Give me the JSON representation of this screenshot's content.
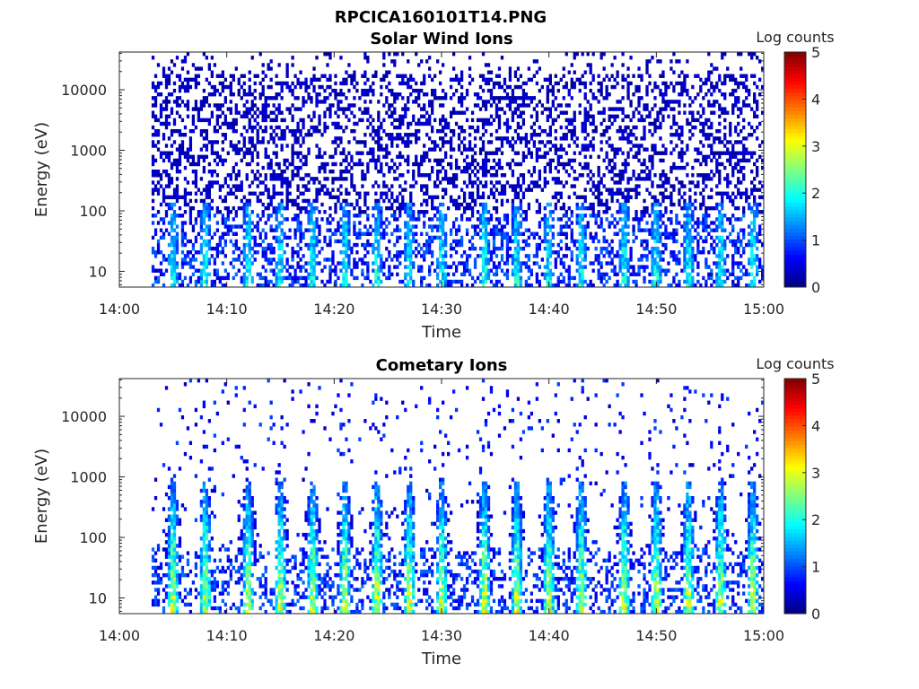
{
  "figure_title": "RPCICA160101T14.PNG",
  "chart_data": [
    {
      "type": "heatmap",
      "title": "Solar Wind Ions",
      "xlabel": "Time",
      "ylabel": "Energy (eV)",
      "x_range": [
        "14:00",
        "15:00"
      ],
      "x_ticks": [
        "14:00",
        "14:10",
        "14:20",
        "14:30",
        "14:40",
        "14:50",
        "15:00"
      ],
      "y_scale": "log",
      "y_range": [
        5.5,
        42000
      ],
      "y_ticks": [
        10,
        100,
        1000,
        10000
      ],
      "y_tick_labels": [
        "10",
        "100",
        "1000",
        "10000"
      ],
      "data_start": "14:03",
      "data_end": "15:00",
      "burst_times": [
        "14:05",
        "14:08",
        "14:12",
        "14:15",
        "14:18",
        "14:21",
        "14:24",
        "14:27",
        "14:30",
        "14:34",
        "14:37",
        "14:40",
        "14:43",
        "14:47",
        "14:50",
        "14:53",
        "14:56",
        "14:59"
      ],
      "peak_log_counts": 2.5,
      "colorbar": {
        "label": "Log counts",
        "range": [
          0,
          5
        ],
        "ticks": [
          "0",
          "1",
          "2",
          "3",
          "4",
          "5"
        ],
        "colormap": "jet"
      }
    },
    {
      "type": "heatmap",
      "title": "Cometary Ions",
      "xlabel": "Time",
      "ylabel": "Energy (eV)",
      "x_range": [
        "14:00",
        "15:00"
      ],
      "x_ticks": [
        "14:00",
        "14:10",
        "14:20",
        "14:30",
        "14:40",
        "14:50",
        "15:00"
      ],
      "y_scale": "log",
      "y_range": [
        5.5,
        42000
      ],
      "y_ticks": [
        10,
        100,
        1000,
        10000
      ],
      "y_tick_labels": [
        "10",
        "100",
        "1000",
        "10000"
      ],
      "data_start": "14:03",
      "data_end": "15:00",
      "burst_times": [
        "14:05",
        "14:08",
        "14:12",
        "14:15",
        "14:18",
        "14:21",
        "14:24",
        "14:27",
        "14:30",
        "14:34",
        "14:37",
        "14:40",
        "14:43",
        "14:47",
        "14:50",
        "14:53",
        "14:56",
        "14:59"
      ],
      "peak_log_counts": 3.6,
      "colorbar": {
        "label": "Log counts",
        "range": [
          0,
          5
        ],
        "ticks": [
          "0",
          "1",
          "2",
          "3",
          "4",
          "5"
        ],
        "colormap": "jet"
      }
    }
  ]
}
